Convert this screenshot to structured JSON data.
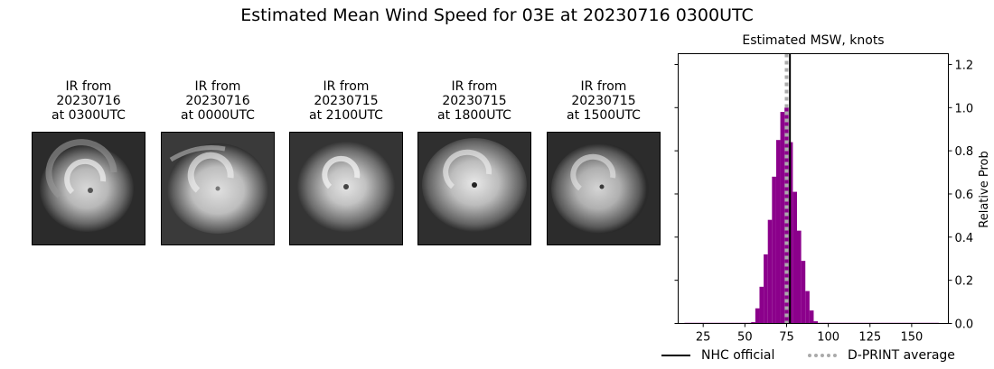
{
  "title": "Estimated Mean Wind Speed for 03E at 20230716 0300UTC",
  "panels": [
    {
      "line1": "IR from",
      "line2": "20230716",
      "line3": "at 0300UTC"
    },
    {
      "line1": "IR from",
      "line2": "20230716",
      "line3": "at 0000UTC"
    },
    {
      "line1": "IR from",
      "line2": "20230715",
      "line3": "at 2100UTC"
    },
    {
      "line1": "IR from",
      "line2": "20230715",
      "line3": "at 1800UTC"
    },
    {
      "line1": "IR from",
      "line2": "20230715",
      "line3": "at 1500UTC"
    }
  ],
  "chart_data": {
    "type": "bar",
    "title": "Estimated MSW, knots",
    "xlabel": "",
    "ylabel": "Relative Prob",
    "x_ticks": [
      25,
      50,
      75,
      100,
      125,
      150
    ],
    "y_ticks": [
      "0.0",
      "0.2",
      "0.4",
      "0.6",
      "0.8",
      "1.0",
      "1.2"
    ],
    "xlim": [
      10,
      172
    ],
    "ylim": [
      0,
      1.25
    ],
    "bin_width": 2.5,
    "bins": [
      {
        "x": 15.0,
        "y": 0.003
      },
      {
        "x": 17.5,
        "y": 0.003
      },
      {
        "x": 20.0,
        "y": 0.003
      },
      {
        "x": 22.5,
        "y": 0.003
      },
      {
        "x": 25.0,
        "y": 0.003
      },
      {
        "x": 27.5,
        "y": 0.003
      },
      {
        "x": 30.0,
        "y": 0.003
      },
      {
        "x": 32.5,
        "y": 0.003
      },
      {
        "x": 35.0,
        "y": 0.003
      },
      {
        "x": 37.5,
        "y": 0.003
      },
      {
        "x": 40.0,
        "y": 0.003
      },
      {
        "x": 42.5,
        "y": 0.003
      },
      {
        "x": 45.0,
        "y": 0.003
      },
      {
        "x": 47.5,
        "y": 0.003
      },
      {
        "x": 50.0,
        "y": 0.003
      },
      {
        "x": 52.5,
        "y": 0.003
      },
      {
        "x": 55.0,
        "y": 0.006
      },
      {
        "x": 57.5,
        "y": 0.07
      },
      {
        "x": 60.0,
        "y": 0.17
      },
      {
        "x": 62.5,
        "y": 0.32
      },
      {
        "x": 65.0,
        "y": 0.48
      },
      {
        "x": 67.5,
        "y": 0.68
      },
      {
        "x": 70.0,
        "y": 0.85
      },
      {
        "x": 72.5,
        "y": 0.98
      },
      {
        "x": 75.0,
        "y": 1.0
      },
      {
        "x": 77.5,
        "y": 0.84
      },
      {
        "x": 80.0,
        "y": 0.61
      },
      {
        "x": 82.5,
        "y": 0.43
      },
      {
        "x": 85.0,
        "y": 0.29
      },
      {
        "x": 87.5,
        "y": 0.15
      },
      {
        "x": 90.0,
        "y": 0.06
      },
      {
        "x": 92.5,
        "y": 0.01
      },
      {
        "x": 95.0,
        "y": 0.003
      },
      {
        "x": 97.5,
        "y": 0.003
      },
      {
        "x": 100.0,
        "y": 0.003
      },
      {
        "x": 102.5,
        "y": 0.003
      },
      {
        "x": 105.0,
        "y": 0.003
      },
      {
        "x": 107.5,
        "y": 0.003
      },
      {
        "x": 110.0,
        "y": 0.003
      },
      {
        "x": 112.5,
        "y": 0.003
      },
      {
        "x": 115.0,
        "y": 0.003
      },
      {
        "x": 117.5,
        "y": 0.003
      },
      {
        "x": 120.0,
        "y": 0.003
      },
      {
        "x": 122.5,
        "y": 0.003
      },
      {
        "x": 125.0,
        "y": 0.003
      },
      {
        "x": 127.5,
        "y": 0.003
      },
      {
        "x": 130.0,
        "y": 0.003
      },
      {
        "x": 132.5,
        "y": 0.003
      },
      {
        "x": 135.0,
        "y": 0.003
      },
      {
        "x": 137.5,
        "y": 0.003
      },
      {
        "x": 140.0,
        "y": 0.003
      },
      {
        "x": 142.5,
        "y": 0.003
      },
      {
        "x": 145.0,
        "y": 0.003
      },
      {
        "x": 147.5,
        "y": 0.003
      },
      {
        "x": 150.0,
        "y": 0.003
      },
      {
        "x": 152.5,
        "y": 0.003
      },
      {
        "x": 155.0,
        "y": 0.003
      },
      {
        "x": 157.5,
        "y": 0.003
      },
      {
        "x": 160.0,
        "y": 0.003
      },
      {
        "x": 162.5,
        "y": 0.003
      },
      {
        "x": 165.0,
        "y": 0.003
      }
    ],
    "nhc_official": 77,
    "dprint_average": 75,
    "bar_color": "#8b008b",
    "nhc_color": "#000000",
    "dprint_color": "#aaaaaa",
    "legend": {
      "nhc_label": "NHC official",
      "dprint_label": "D-PRINT average",
      "placement": "bottom"
    }
  }
}
